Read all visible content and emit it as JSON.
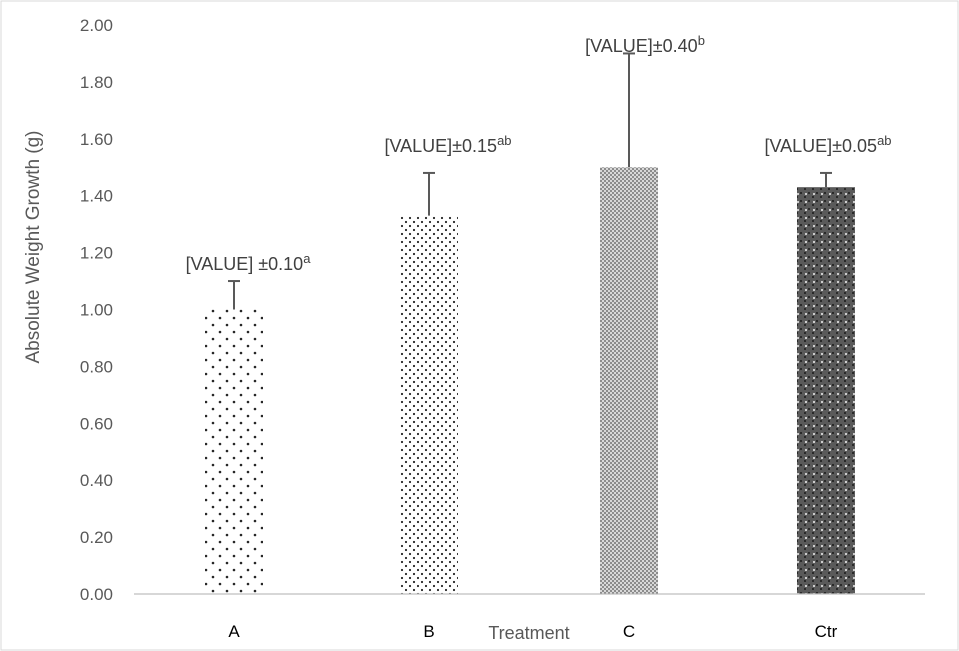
{
  "chart_data": {
    "type": "bar",
    "categories": [
      "A",
      "B",
      "C",
      "Ctr"
    ],
    "values": [
      1.0,
      1.33,
      1.5,
      1.43
    ],
    "errors": [
      0.1,
      0.15,
      0.4,
      0.05
    ],
    "data_labels": [
      {
        "text": "[VALUE] ±0.10",
        "sup": "a"
      },
      {
        "text": "[VALUE]±0.15",
        "sup": "ab"
      },
      {
        "text": "[VALUE]±0.40",
        "sup": "b"
      },
      {
        "text": "[VALUE]±0.05",
        "sup": "ab"
      }
    ],
    "patterns": [
      "sparse-dots",
      "dense-dots",
      "fine-dots",
      "dark-checker"
    ],
    "title": "",
    "xlabel": "Treatment",
    "ylabel": "Absolute Weight Growth (g)",
    "ylim": [
      0,
      2
    ],
    "yticks": [
      "0.00",
      "0.20",
      "0.40",
      "0.60",
      "0.80",
      "1.00",
      "1.20",
      "1.40",
      "1.60",
      "1.80",
      "2.00"
    ],
    "grid": false,
    "legend": "none"
  },
  "colors": {
    "axis_text": "#595959",
    "bar_pattern": "#262626",
    "axis_line": "#bfbfbf",
    "error_bar": "#595959",
    "border": "#d9d9d9"
  }
}
